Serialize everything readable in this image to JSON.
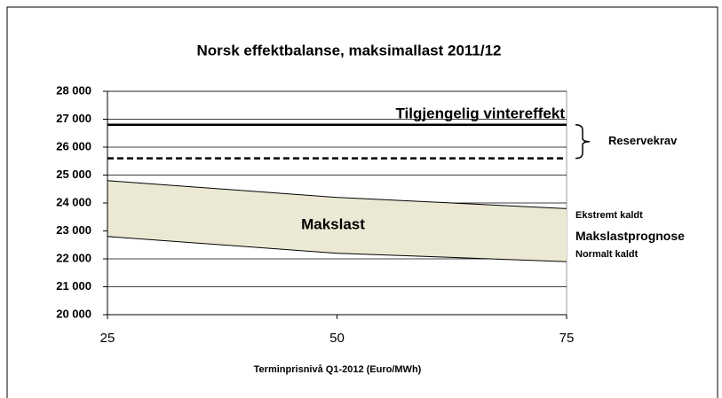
{
  "chart_data": {
    "type": "band",
    "title": "Norsk effektbalanse, maksimallast 2011/12",
    "x_label": "Terminprisnivå Q1-2012 (Euro/MWh)",
    "x": [
      25,
      50,
      75
    ],
    "series": [
      {
        "name": "Ekstremt kaldt",
        "color": "#000000",
        "values": [
          24800,
          24200,
          23800
        ]
      },
      {
        "name": "Normalt kaldt",
        "color": "#000000",
        "values": [
          22800,
          22200,
          21900
        ]
      }
    ],
    "band_color": "#ebe9d3",
    "band_label": "Makslast",
    "forecast_label": "Makslastprognose",
    "reference_lines": [
      {
        "label": "Tilgjengelig vintereffekt",
        "value": 26800,
        "style": "solid"
      },
      {
        "value": 25600,
        "style": "dashed"
      }
    ],
    "reserve_label": "Reservekrav",
    "xlim": [
      25,
      75
    ],
    "xticks": [
      25,
      50,
      75
    ],
    "ylim": [
      20000,
      28000
    ],
    "yticks": [
      {
        "value": 20000,
        "label": "20 000"
      },
      {
        "value": 21000,
        "label": "21 000"
      },
      {
        "value": 22000,
        "label": "22 000"
      },
      {
        "value": 23000,
        "label": "23 000"
      },
      {
        "value": 24000,
        "label": "24 000"
      },
      {
        "value": 25000,
        "label": "25 000"
      },
      {
        "value": 26000,
        "label": "26 000"
      },
      {
        "value": 27000,
        "label": "27 000"
      },
      {
        "value": 28000,
        "label": "28 000"
      }
    ],
    "grid": true
  }
}
